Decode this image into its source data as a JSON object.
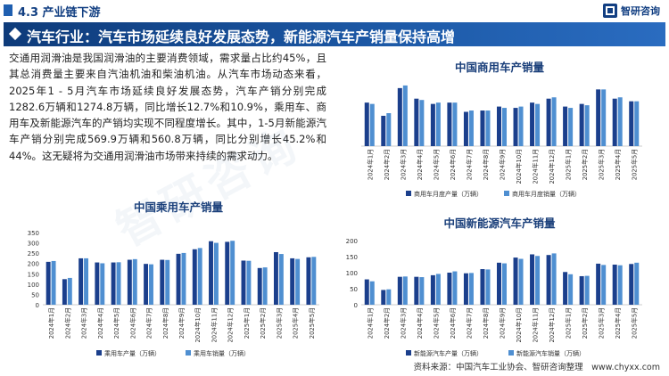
{
  "header": {
    "section_title": "4.3 产业链下游",
    "logo_text": "智研咨询",
    "logo_icon": "zhiyan-logo-icon"
  },
  "banner": {
    "title": "汽车行业：汽车市场延续良好发展态势，新能源汽车产销量保持高增"
  },
  "paragraph": "交通用润滑油是我国润滑油的主要消费领域，需求量占比约45%，且其总消费量主要来自汽油机油和柴油机油。从汽车市场动态来看，2025年1 - 5月汽车市场延续良好发展态势，汽车产销分别完成1282.6万辆和1274.8万辆，同比增长12.7%和10.9%，乘用车、商用车及新能源汽车的产销均实现不同程度增长。其中，1-5月新能源汽车产销分别完成569.9万辆和560.8万辆，同比分别增长45.2%和44%。这无疑将为交通用润滑油市场带来持续的需求动力。",
  "watermark": "智研咨询",
  "source": "资料来源：中国汽车工业协会、智研咨询整理　www.chyxx.com",
  "colors": {
    "series_a": "#1b3f8c",
    "series_b": "#4f8fd1",
    "banner_start": "#0e3b7a",
    "banner_end": "#2a6cc0"
  },
  "chart_data": [
    {
      "type": "bar",
      "title": "中国商用车产销量",
      "categories": [
        "2024年1月",
        "2024年2月",
        "2024年3月",
        "2024年4月",
        "2024年5月",
        "2024年6月",
        "2024年7月",
        "2024年8月",
        "2024年9月",
        "2024年10月",
        "2024年11月",
        "2024年12月",
        "2025年1月",
        "2025年2月",
        "2025年3月",
        "2025年4月",
        "2025年5月"
      ],
      "series": [
        {
          "name": "商用车月度产量（万辆）",
          "values": [
            33,
            23,
            44,
            36,
            32,
            33,
            26,
            27,
            30,
            29,
            33,
            36,
            30,
            32,
            43,
            36,
            34
          ]
        },
        {
          "name": "商用车月度销量（万辆）",
          "values": [
            32,
            25,
            46,
            35,
            33,
            33,
            27,
            27,
            29,
            30,
            32,
            37,
            29,
            31,
            43,
            37,
            34
          ]
        }
      ],
      "ylim": [
        0,
        50
      ],
      "legend": "bottom"
    },
    {
      "type": "bar",
      "title": "中国乘用车产销量",
      "categories": [
        "2024年1月",
        "2024年2月",
        "2024年3月",
        "2024年4月",
        "2024年5月",
        "2024年6月",
        "2024年7月",
        "2024年8月",
        "2024年9月",
        "2024年10月",
        "2024年11月",
        "2024年12月",
        "2025年1月",
        "2025年2月",
        "2025年3月",
        "2025年4月",
        "2025年5月"
      ],
      "series": [
        {
          "name": "乘用车产量（万辆）",
          "values": [
            208,
            124,
            225,
            205,
            205,
            218,
            198,
            218,
            247,
            269,
            308,
            305,
            214,
            178,
            255,
            225,
            230
          ]
        },
        {
          "name": "乘用车销量（万辆）",
          "values": [
            212,
            130,
            225,
            201,
            206,
            221,
            196,
            217,
            251,
            275,
            300,
            310,
            213,
            181,
            246,
            222,
            232
          ]
        }
      ],
      "ylim": [
        0,
        350
      ],
      "yticks": [
        0,
        50,
        100,
        150,
        200,
        250,
        300,
        350
      ],
      "legend": "bottom"
    },
    {
      "type": "bar",
      "title": "中国新能源汽车产销量",
      "categories": [
        "2024年1月",
        "2024年2月",
        "2024年3月",
        "2024年4月",
        "2024年5月",
        "2024年6月",
        "2024年7月",
        "2024年8月",
        "2024年9月",
        "2024年10月",
        "2024年11月",
        "2024年12月",
        "2025年1月",
        "2025年2月",
        "2025年3月",
        "2025年4月",
        "2025年5月"
      ],
      "series": [
        {
          "name": "新能源汽车产量（万辆）",
          "values": [
            79,
            46,
            87,
            87,
            92,
            100,
            98,
            111,
            131,
            147,
            157,
            155,
            102,
            89,
            128,
            125,
            127
          ]
        },
        {
          "name": "新能源汽车销量（万辆）",
          "values": [
            73,
            48,
            88,
            86,
            96,
            104,
            99,
            110,
            129,
            143,
            152,
            160,
            95,
            90,
            124,
            123,
            131
          ]
        }
      ],
      "ylim": [
        0,
        200
      ],
      "yticks": [
        0,
        50,
        100,
        150,
        200
      ],
      "legend": "bottom"
    }
  ]
}
